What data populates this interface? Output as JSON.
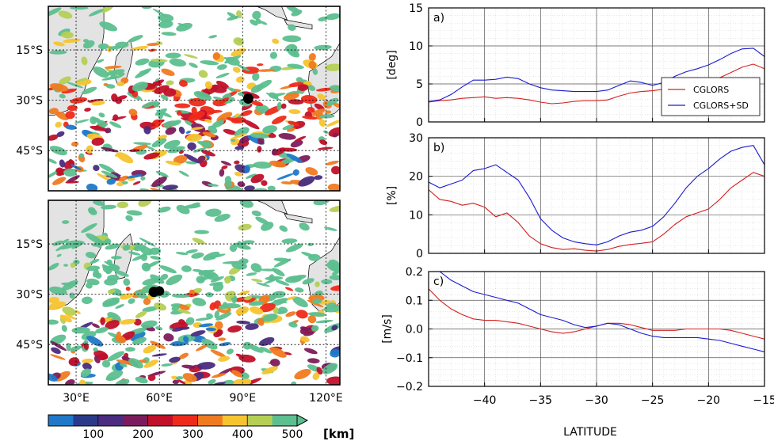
{
  "maps": {
    "lat_ticks": [
      "15°S",
      "30°S",
      "45°S"
    ],
    "lon_ticks": [
      "30°E",
      "60°E",
      "90°E",
      "120°E"
    ],
    "lat_values": [
      -15,
      -30,
      -45
    ],
    "lon_values": [
      30,
      60,
      90,
      120
    ],
    "lon_range": [
      20,
      125
    ],
    "lat_range": [
      -57,
      -2
    ],
    "panels": [
      {
        "marker": {
          "lon": 92,
          "lat": -29.5
        }
      },
      {
        "marker": {
          "lon": 58,
          "lat": -29.3
        }
      }
    ]
  },
  "colorbar": {
    "ticks": [
      "100",
      "200",
      "300",
      "400",
      "500"
    ],
    "unit": "[km]",
    "colors": [
      "#1f78c8",
      "#2a3a8a",
      "#4a2c80",
      "#7d1c5c",
      "#c0102a",
      "#ee2a1a",
      "#f07a20",
      "#f6c430",
      "#b5cf55",
      "#5cbf8f"
    ]
  },
  "profiles": {
    "xlabel": "LATITUDE",
    "xticks": [
      "−40",
      "−35",
      "−30",
      "−25",
      "−20",
      "−15"
    ],
    "xtick_values": [
      -40,
      -35,
      -30,
      -25,
      -20,
      -15
    ],
    "xlim": [
      -45,
      -15
    ],
    "colors": {
      "CGLORS": "#d42020",
      "CGLORS+SD": "#1a1ad0"
    }
  },
  "chart_data": [
    {
      "type": "line",
      "panel_label": "a)",
      "ylabel": "[deg]",
      "ylim": [
        0,
        15
      ],
      "yticks": [
        "0",
        "5",
        "10",
        "15"
      ],
      "ytick_values": [
        0,
        5,
        10,
        15
      ],
      "grid": true,
      "legend_position": "lower-right",
      "x": [
        -45,
        -44,
        -43,
        -42,
        -41,
        -40,
        -39,
        -38,
        -37,
        -36,
        -35,
        -34,
        -33,
        -32,
        -31,
        -30,
        -29,
        -28,
        -27,
        -26,
        -25,
        -24,
        -23,
        -22,
        -21,
        -20,
        -19,
        -18,
        -17,
        -16,
        -15
      ],
      "series": [
        {
          "name": "CGLORS",
          "values": [
            2.6,
            2.8,
            2.9,
            3.1,
            3.2,
            3.3,
            3.1,
            3.2,
            3.1,
            2.9,
            2.6,
            2.4,
            2.5,
            2.7,
            2.8,
            2.8,
            2.9,
            3.4,
            3.8,
            4.0,
            4.1,
            4.3,
            4.6,
            4.9,
            5.0,
            5.3,
            5.8,
            6.5,
            7.2,
            7.6,
            7.0
          ]
        },
        {
          "name": "CGLORS+SD",
          "values": [
            2.7,
            2.9,
            3.6,
            4.6,
            5.5,
            5.5,
            5.6,
            5.9,
            5.7,
            5.0,
            4.5,
            4.2,
            4.1,
            4.0,
            4.0,
            4.0,
            4.2,
            4.8,
            5.4,
            5.2,
            4.8,
            5.2,
            6.0,
            6.6,
            7.0,
            7.5,
            8.2,
            9.0,
            9.6,
            9.7,
            8.6
          ]
        }
      ]
    },
    {
      "type": "line",
      "panel_label": "b)",
      "ylabel": "[%]",
      "ylim": [
        0,
        30
      ],
      "yticks": [
        "0",
        "10",
        "20",
        "30"
      ],
      "ytick_values": [
        0,
        10,
        20,
        30
      ],
      "grid": true,
      "x": [
        -45,
        -44,
        -43,
        -42,
        -41,
        -40,
        -39,
        -38,
        -37,
        -36,
        -35,
        -34,
        -33,
        -32,
        -31,
        -30,
        -29,
        -28,
        -27,
        -26,
        -25,
        -24,
        -23,
        -22,
        -21,
        -20,
        -19,
        -18,
        -17,
        -16,
        -15
      ],
      "series": [
        {
          "name": "CGLORS",
          "values": [
            16.5,
            14.0,
            13.5,
            12.5,
            13.0,
            12.0,
            9.5,
            10.5,
            8.0,
            4.5,
            2.5,
            1.5,
            1.0,
            1.2,
            0.8,
            0.6,
            1.0,
            1.8,
            2.3,
            2.6,
            3.0,
            5.0,
            7.5,
            9.5,
            10.5,
            11.5,
            14.0,
            17.0,
            19.0,
            21.0,
            20.0
          ]
        },
        {
          "name": "CGLORS+SD",
          "values": [
            18.5,
            17.0,
            18.0,
            19.0,
            21.5,
            22.0,
            23.0,
            21.0,
            19.0,
            14.5,
            9.0,
            6.0,
            4.0,
            3.0,
            2.5,
            2.2,
            3.0,
            4.5,
            5.5,
            6.0,
            7.0,
            9.5,
            13.0,
            17.0,
            20.0,
            22.0,
            24.5,
            26.5,
            27.5,
            28.0,
            23.0
          ]
        }
      ]
    },
    {
      "type": "line",
      "panel_label": "c)",
      "ylabel": "[m/s]",
      "ylim": [
        -0.2,
        0.2
      ],
      "yticks": [
        "−0.2",
        "−0.1",
        "0.0",
        "0.1",
        "0.2"
      ],
      "ytick_values": [
        -0.2,
        -0.1,
        0.0,
        0.1,
        0.2
      ],
      "grid": true,
      "x": [
        -45,
        -44,
        -43,
        -42,
        -41,
        -40,
        -39,
        -38,
        -37,
        -36,
        -35,
        -34,
        -33,
        -32,
        -31,
        -30,
        -29,
        -28,
        -27,
        -26,
        -25,
        -24,
        -23,
        -22,
        -21,
        -20,
        -19,
        -18,
        -17,
        -16,
        -15
      ],
      "series": [
        {
          "name": "CGLORS",
          "values": [
            0.14,
            0.1,
            0.07,
            0.05,
            0.035,
            0.03,
            0.03,
            0.025,
            0.02,
            0.01,
            0.0,
            -0.01,
            -0.015,
            -0.01,
            0.0,
            0.01,
            0.02,
            0.02,
            0.015,
            0.005,
            -0.005,
            -0.005,
            -0.005,
            0.0,
            0.0,
            0.0,
            0.0,
            -0.005,
            -0.015,
            -0.025,
            -0.035
          ]
        },
        {
          "name": "CGLORS+SD",
          "values": [
            0.23,
            0.2,
            0.17,
            0.15,
            0.13,
            0.12,
            0.11,
            0.1,
            0.09,
            0.07,
            0.05,
            0.04,
            0.03,
            0.015,
            0.005,
            0.01,
            0.02,
            0.015,
            0.0,
            -0.015,
            -0.025,
            -0.03,
            -0.03,
            -0.03,
            -0.03,
            -0.035,
            -0.04,
            -0.05,
            -0.06,
            -0.07,
            -0.08
          ]
        }
      ]
    }
  ]
}
